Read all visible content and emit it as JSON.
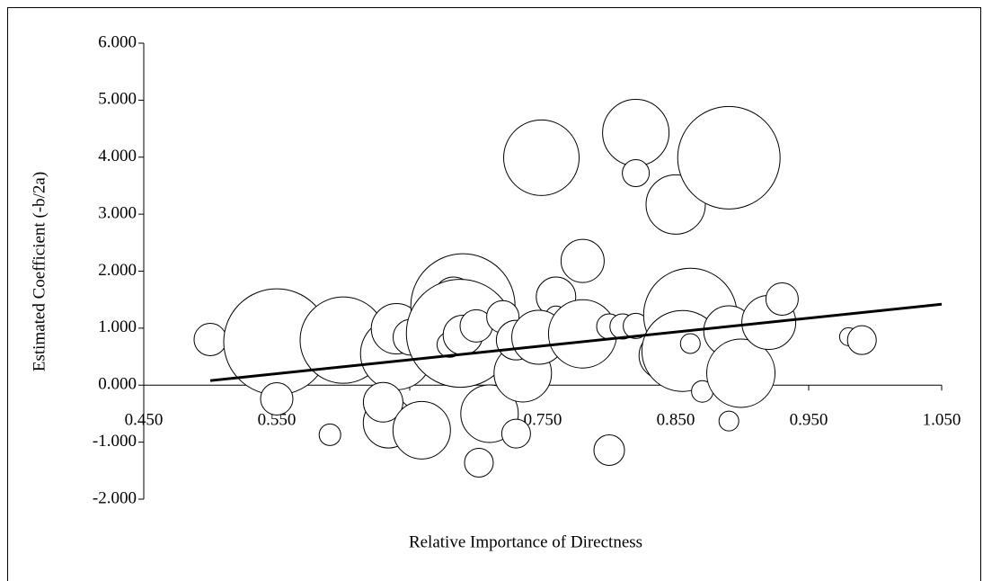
{
  "chart_data": {
    "type": "bubble",
    "x_label": "Relative Importance of Directness",
    "y_label": "Estimated Coefficient (-b/2a)",
    "xlim": [
      0.45,
      1.05
    ],
    "xticks": [
      {
        "value": 0.45,
        "label": "0.450"
      },
      {
        "value": 0.55,
        "label": "0.550"
      },
      {
        "value": 0.65,
        "label": "0.650"
      },
      {
        "value": 0.75,
        "label": "0.750"
      },
      {
        "value": 0.85,
        "label": "0.850"
      },
      {
        "value": 0.95,
        "label": "0.950"
      },
      {
        "value": 1.05,
        "label": "1.050"
      }
    ],
    "ylim": [
      -2,
      6
    ],
    "yticks": [
      {
        "value": -2,
        "label": "-2.000"
      },
      {
        "value": -1,
        "label": "-1.000"
      },
      {
        "value": 0,
        "label": "0.000"
      },
      {
        "value": 1,
        "label": "1.000"
      },
      {
        "value": 2,
        "label": "2.000"
      },
      {
        "value": 3,
        "label": "3.000"
      },
      {
        "value": 4,
        "label": "4.000"
      },
      {
        "value": 5,
        "label": "5.000"
      },
      {
        "value": 6,
        "label": "6.000"
      }
    ],
    "color": "#ffffff",
    "x": [
      0.5,
      0.55,
      0.55,
      0.6,
      0.59,
      0.64,
      0.64,
      0.634,
      0.63,
      0.659,
      0.651,
      0.69,
      0.683,
      0.688,
      0.68,
      0.69,
      0.7,
      0.71,
      0.702,
      0.73,
      0.72,
      0.735,
      0.73,
      0.749,
      0.76,
      0.76,
      0.747,
      0.78,
      0.78,
      0.8,
      0.8,
      0.81,
      0.82,
      0.82,
      0.82,
      0.831,
      0.84,
      0.85,
      0.861,
      0.855,
      0.861,
      0.87,
      0.89,
      0.89,
      0.89,
      0.899,
      0.92,
      0.93,
      0.98,
      0.99
    ],
    "values": [
      0.8,
      0.76,
      -0.24,
      0.79,
      -0.87,
      0.55,
      0.99,
      -0.66,
      -0.3,
      -0.79,
      0.84,
      1.39,
      1.55,
      0.91,
      0.71,
      0.88,
      1.04,
      -0.5,
      -1.36,
      -0.85,
      1.2,
      0.21,
      0.79,
      3.99,
      1.55,
      1.2,
      0.84,
      2.18,
      0.9,
      -1.14,
      1.03,
      1.03,
      1.04,
      4.43,
      3.72,
      0.69,
      0.52,
      3.17,
      1.23,
      0.6,
      0.73,
      -0.11,
      3.99,
      0.95,
      -0.63,
      0.21,
      1.1,
      1.51,
      0.85,
      0.79
    ],
    "sizes": [
      324,
      3481,
      324,
      2304,
      144,
      1600,
      784,
      784,
      484,
      1024,
      400,
      3364,
      484,
      3600,
      196,
      484,
      324,
      1024,
      256,
      256,
      324,
      1024,
      484,
      1764,
      484,
      144,
      900,
      576,
      1444,
      289,
      196,
      196,
      196,
      1369,
      225,
      64,
      676,
      1089,
      2704,
      2025,
      121,
      144,
      3249,
      784,
      121,
      1444,
      900,
      324,
      100,
      256
    ],
    "trendline": {
      "x": [
        0.5,
        1.05
      ],
      "values": [
        0.08,
        1.42
      ]
    }
  }
}
